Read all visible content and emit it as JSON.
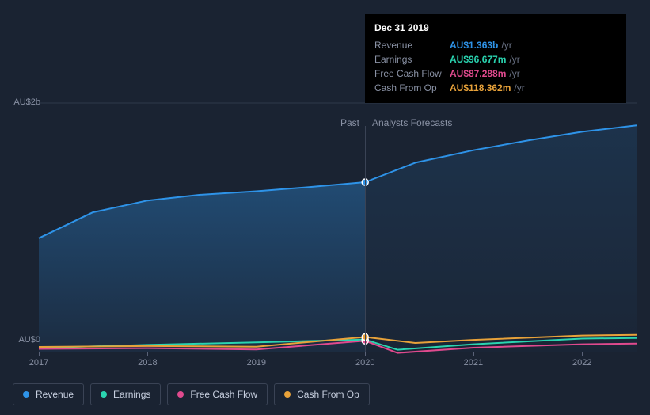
{
  "chart": {
    "type": "area-line",
    "background_color": "#1a2332",
    "grid_color": "#2f3849",
    "y_axis": {
      "labels": [
        "AU$2b",
        "AU$0"
      ],
      "values": [
        2,
        0
      ],
      "fontsize": 11,
      "color": "#8a92a5"
    },
    "x_axis": {
      "labels": [
        "2017",
        "2018",
        "2019",
        "2020",
        "2021",
        "2022"
      ],
      "positions": [
        0,
        0.182,
        0.364,
        0.546,
        0.727,
        0.909
      ],
      "fontsize": 11,
      "color": "#8a92a5"
    },
    "sections": {
      "past_label": "Past",
      "forecast_label": "Analysts Forecasts",
      "split_position": 0.546
    },
    "series": [
      {
        "name": "Revenue",
        "color": "#2e93e8",
        "fill": true,
        "fill_opacity_past": 0.35,
        "fill_opacity_future": 0.1,
        "points": [
          [
            0.0,
            0.912
          ],
          [
            0.09,
            1.12
          ],
          [
            0.182,
            1.215
          ],
          [
            0.27,
            1.262
          ],
          [
            0.364,
            1.29
          ],
          [
            0.45,
            1.322
          ],
          [
            0.546,
            1.363
          ],
          [
            0.63,
            1.52
          ],
          [
            0.727,
            1.62
          ],
          [
            0.82,
            1.7
          ],
          [
            0.909,
            1.768
          ],
          [
            1.0,
            1.82
          ]
        ]
      },
      {
        "name": "Earnings",
        "color": "#2ad4b0",
        "fill": false,
        "points": [
          [
            0.0,
            0.03
          ],
          [
            0.182,
            0.055
          ],
          [
            0.364,
            0.075
          ],
          [
            0.546,
            0.097
          ],
          [
            0.6,
            0.015
          ],
          [
            0.727,
            0.06
          ],
          [
            0.909,
            0.105
          ],
          [
            1.0,
            0.11
          ]
        ]
      },
      {
        "name": "Free Cash Flow",
        "color": "#e04a8e",
        "fill": false,
        "points": [
          [
            0.0,
            0.022
          ],
          [
            0.182,
            0.028
          ],
          [
            0.364,
            0.018
          ],
          [
            0.546,
            0.087
          ],
          [
            0.6,
            -0.01
          ],
          [
            0.727,
            0.032
          ],
          [
            0.909,
            0.06
          ],
          [
            1.0,
            0.065
          ]
        ]
      },
      {
        "name": "Cash From Op",
        "color": "#e8a23a",
        "fill": false,
        "points": [
          [
            0.0,
            0.038
          ],
          [
            0.182,
            0.045
          ],
          [
            0.364,
            0.04
          ],
          [
            0.546,
            0.118
          ],
          [
            0.63,
            0.07
          ],
          [
            0.727,
            0.095
          ],
          [
            0.909,
            0.13
          ],
          [
            1.0,
            0.135
          ]
        ]
      }
    ],
    "marker": {
      "x": 0.546,
      "radius": 4,
      "stroke": "#ffffff",
      "stroke_width": 1.5
    },
    "line_width": 2
  },
  "tooltip": {
    "date": "Dec 31 2019",
    "rows": [
      {
        "label": "Revenue",
        "value": "AU$1.363b",
        "unit": "/yr",
        "color": "#2e93e8"
      },
      {
        "label": "Earnings",
        "value": "AU$96.677m",
        "unit": "/yr",
        "color": "#2ad4b0"
      },
      {
        "label": "Free Cash Flow",
        "value": "AU$87.288m",
        "unit": "/yr",
        "color": "#e04a8e"
      },
      {
        "label": "Cash From Op",
        "value": "AU$118.362m",
        "unit": "/yr",
        "color": "#e8a23a"
      }
    ]
  },
  "legend": {
    "items": [
      {
        "label": "Revenue",
        "color": "#2e93e8"
      },
      {
        "label": "Earnings",
        "color": "#2ad4b0"
      },
      {
        "label": "Free Cash Flow",
        "color": "#e04a8e"
      },
      {
        "label": "Cash From Op",
        "color": "#e8a23a"
      }
    ]
  }
}
